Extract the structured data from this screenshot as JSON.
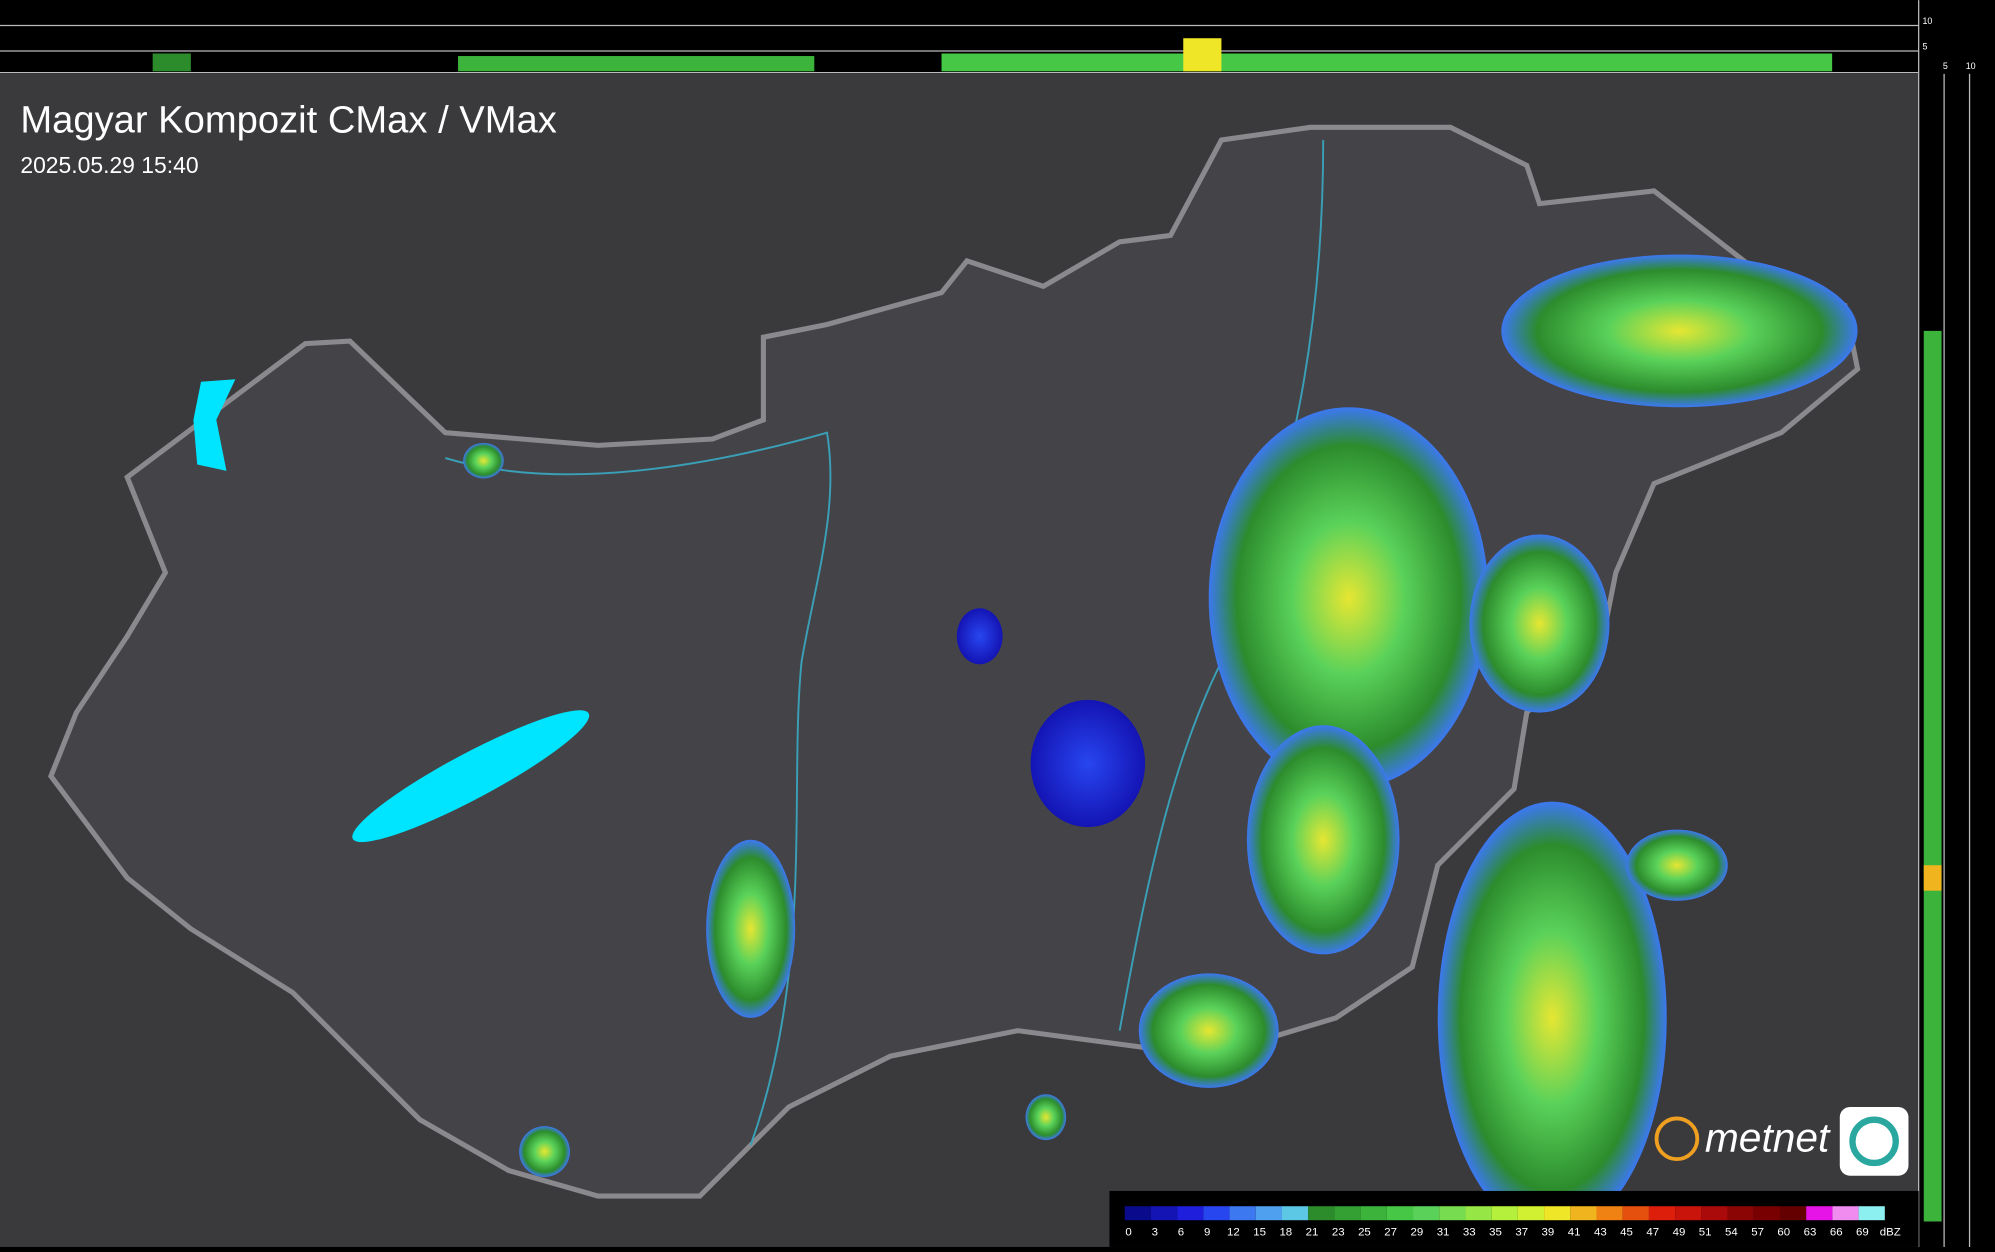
{
  "header": {
    "title": "Magyar Kompozit CMax / VMax",
    "timestamp": "2025.05.29 15:40"
  },
  "side_axis": {
    "top_labels": [
      "10",
      "5"
    ],
    "bottom_labels": [
      "5",
      "10"
    ]
  },
  "brand": "metnet",
  "legend": {
    "ticks": [
      0,
      3,
      6,
      9,
      12,
      15,
      18,
      21,
      23,
      25,
      27,
      29,
      31,
      33,
      35,
      37,
      39,
      41,
      43,
      45,
      47,
      49,
      51,
      54,
      57,
      60,
      63,
      66,
      69
    ],
    "unit": "dBZ",
    "colors": [
      "#0a0a8c",
      "#1414b4",
      "#1e1edc",
      "#2846f0",
      "#3c78f0",
      "#50a0f0",
      "#5cc8e6",
      "#2c8c2c",
      "#34a034",
      "#3cb43c",
      "#46c846",
      "#5ad25a",
      "#78dc50",
      "#96e646",
      "#b4f03c",
      "#d2f032",
      "#f0e628",
      "#f0b41e",
      "#f08214",
      "#e6500f",
      "#dc1e0a",
      "#c8140a",
      "#aa0a0a",
      "#8c0505",
      "#780000",
      "#640000",
      "#e614e6",
      "#f08cf0",
      "#8cf0f0"
    ]
  }
}
